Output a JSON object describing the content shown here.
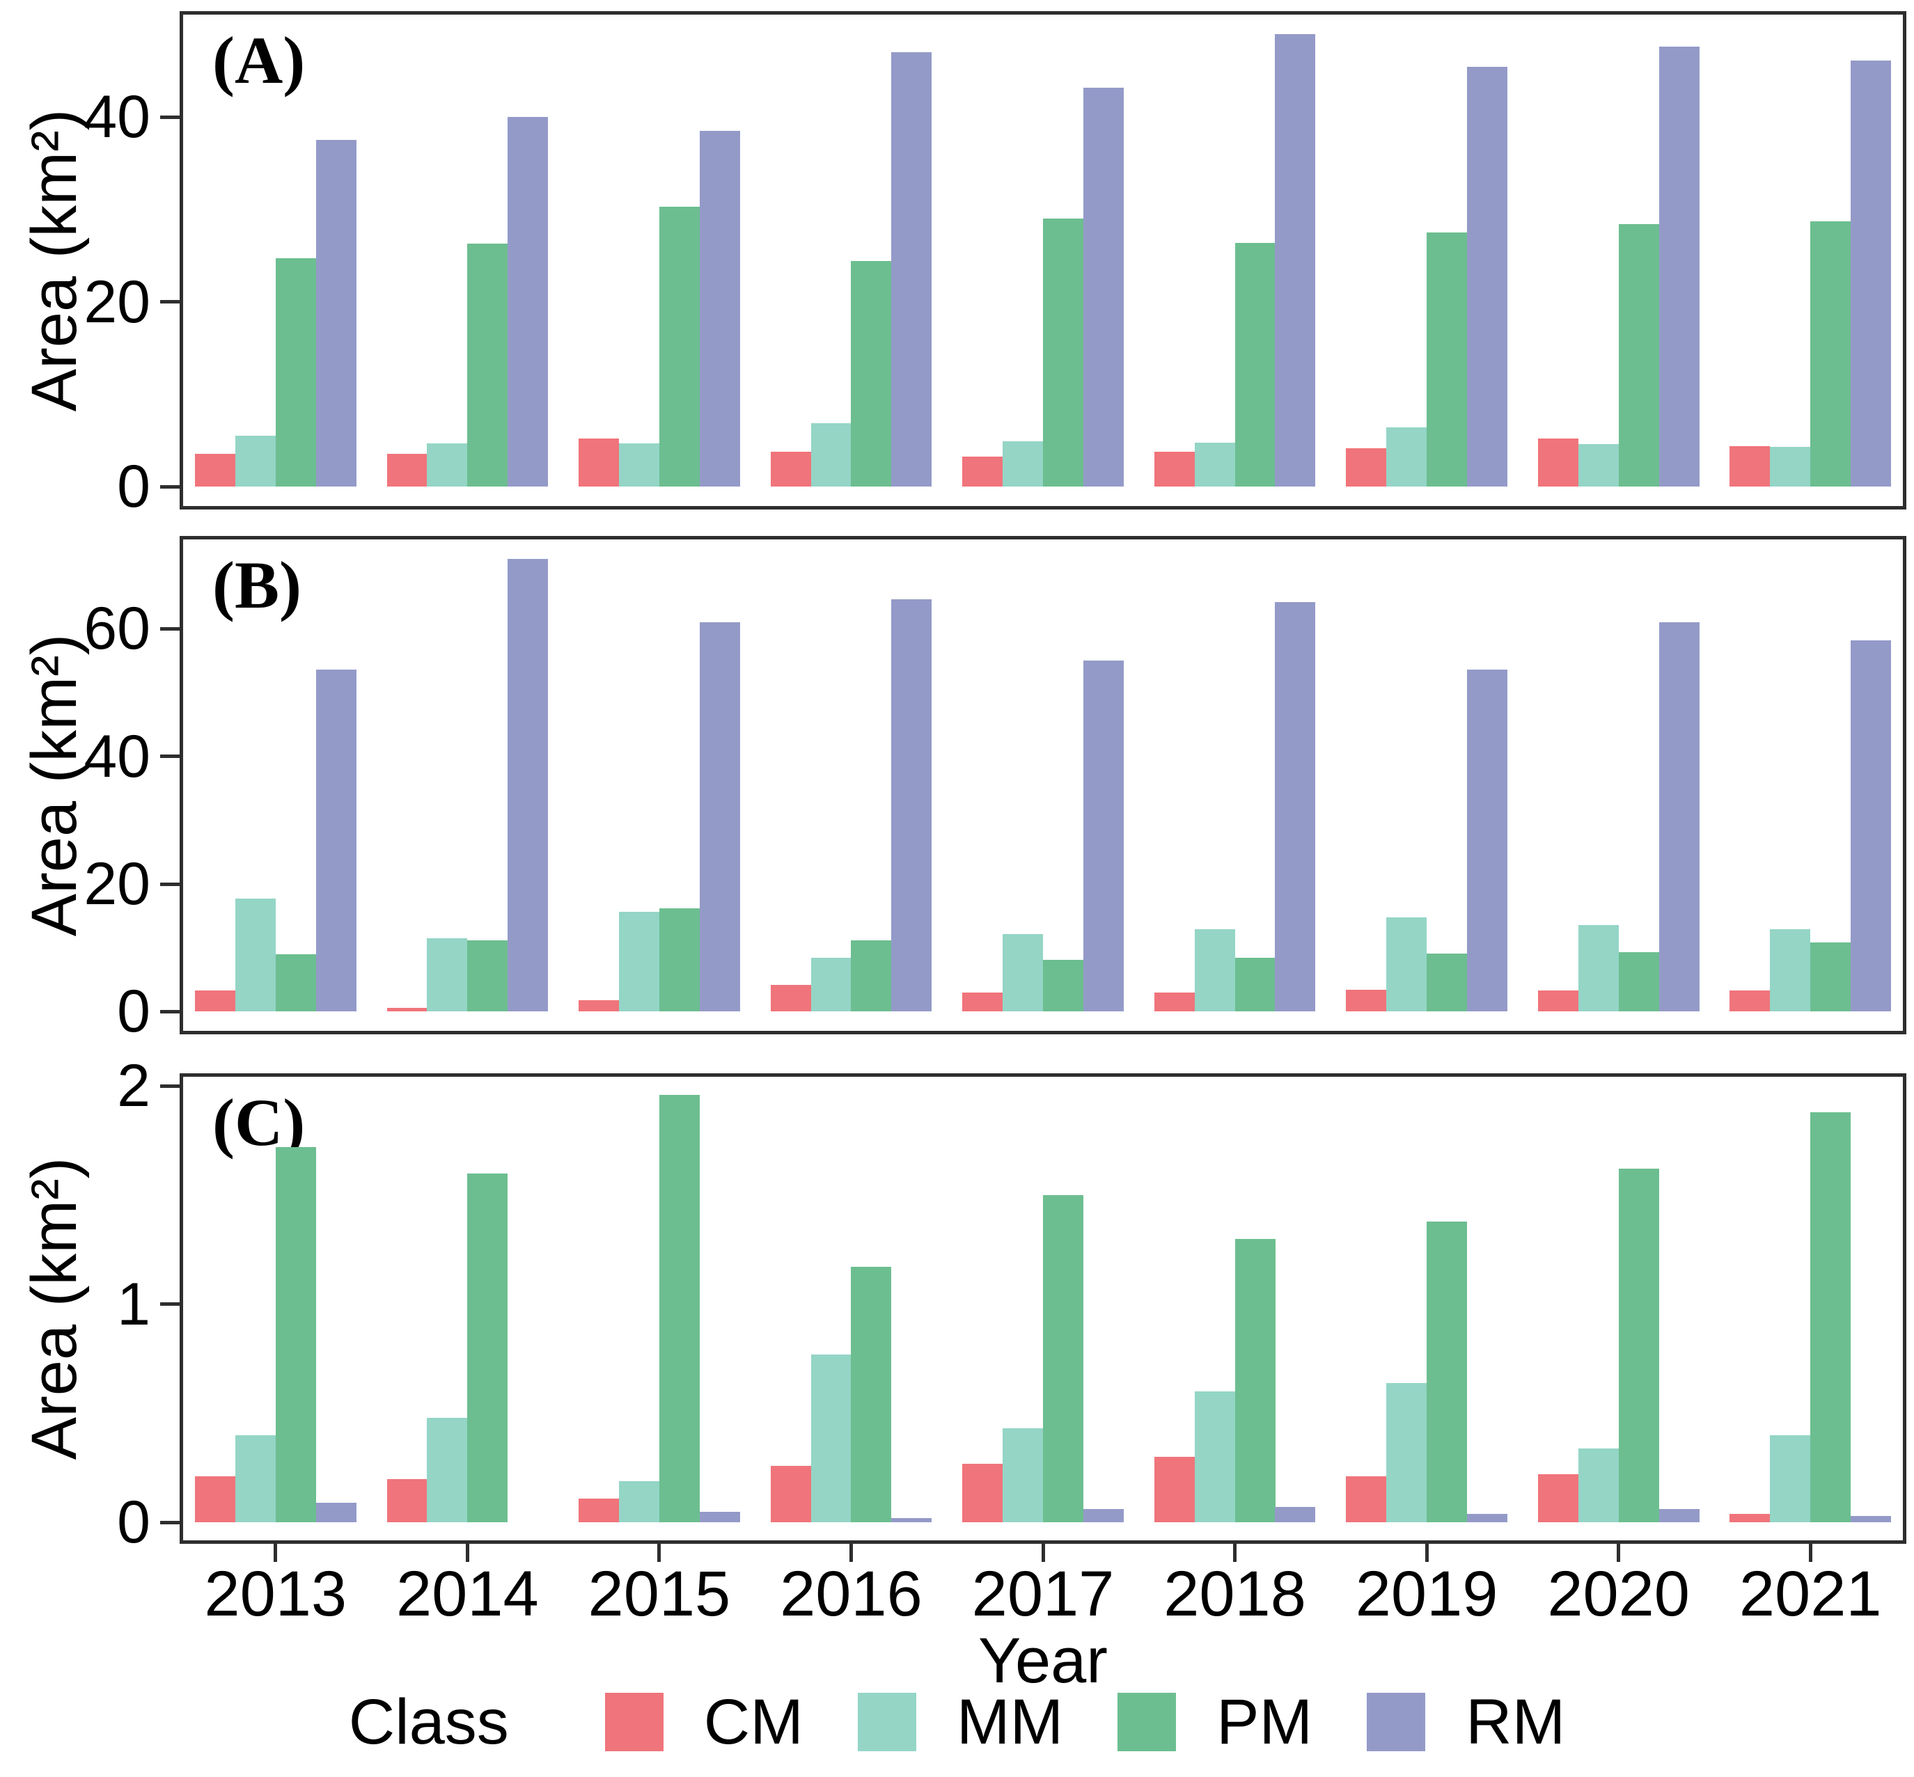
{
  "figure": {
    "xlabel": "Year",
    "legend_title": "Class",
    "background_color": "#FFFFFF",
    "frame_color": "#2E2E2E",
    "text_color": "#000000"
  },
  "chart_data": [
    {
      "type": "bar",
      "panel_label": "(A)",
      "ylabel": "Area (km²)",
      "xlabel": "Year",
      "categories": [
        "2013",
        "2014",
        "2015",
        "2016",
        "2017",
        "2018",
        "2019",
        "2020",
        "2021"
      ],
      "yticks": [
        0,
        20,
        40
      ],
      "ylim": [
        0,
        51.5
      ],
      "ymax_data": 49,
      "grid": false,
      "legend_position": "bottom",
      "series": [
        {
          "name": "CM",
          "color": "#F0747B",
          "values": [
            3.6,
            3.6,
            5.2,
            3.8,
            3.3,
            3.8,
            4.2,
            5.2,
            4.4
          ]
        },
        {
          "name": "MM",
          "color": "#94D5C6",
          "values": [
            5.5,
            4.7,
            4.7,
            6.9,
            4.9,
            4.8,
            6.4,
            4.6,
            4.3
          ]
        },
        {
          "name": "PM",
          "color": "#6CBE90",
          "values": [
            24.7,
            26.3,
            30.3,
            24.4,
            29.0,
            26.4,
            27.5,
            28.4,
            28.7
          ]
        },
        {
          "name": "RM",
          "color": "#949AC8",
          "values": [
            37.5,
            40.0,
            38.5,
            47.0,
            43.2,
            49.0,
            45.4,
            47.6,
            46.1
          ]
        }
      ]
    },
    {
      "type": "bar",
      "panel_label": "(B)",
      "ylabel": "Area (km²)",
      "xlabel": "Year",
      "categories": [
        "2013",
        "2014",
        "2015",
        "2016",
        "2017",
        "2018",
        "2019",
        "2020",
        "2021"
      ],
      "yticks": [
        0,
        20,
        40,
        60
      ],
      "ylim": [
        0,
        74.5
      ],
      "ymax_data": 71,
      "grid": false,
      "legend_position": "bottom",
      "series": [
        {
          "name": "CM",
          "color": "#F0747B",
          "values": [
            3.3,
            0.6,
            1.8,
            4.2,
            3.0,
            3.0,
            3.4,
            3.3,
            3.3
          ]
        },
        {
          "name": "MM",
          "color": "#94D5C6",
          "values": [
            17.7,
            11.5,
            15.6,
            8.4,
            12.2,
            12.9,
            14.8,
            13.6,
            12.9
          ]
        },
        {
          "name": "PM",
          "color": "#6CBE90",
          "values": [
            9.0,
            11.2,
            16.2,
            11.2,
            8.1,
            8.4,
            9.1,
            9.3,
            10.9
          ]
        },
        {
          "name": "RM",
          "color": "#949AC8",
          "values": [
            53.6,
            71.0,
            61.0,
            64.6,
            55.0,
            64.2,
            53.6,
            61.0,
            58.2
          ]
        }
      ]
    },
    {
      "type": "bar",
      "panel_label": "(C)",
      "ylabel": "Area (km²)",
      "xlabel": "Year",
      "categories": [
        "2013",
        "2014",
        "2015",
        "2016",
        "2017",
        "2018",
        "2019",
        "2020",
        "2021"
      ],
      "yticks": [
        0,
        1,
        2
      ],
      "ylim": [
        0,
        2.06
      ],
      "ymax_data": 1.96,
      "grid": false,
      "legend_position": "bottom",
      "series": [
        {
          "name": "CM",
          "color": "#F0747B",
          "values": [
            0.21,
            0.2,
            0.11,
            0.26,
            0.27,
            0.3,
            0.21,
            0.22,
            0.04
          ]
        },
        {
          "name": "MM",
          "color": "#94D5C6",
          "values": [
            0.4,
            0.48,
            0.19,
            0.77,
            0.43,
            0.6,
            0.64,
            0.34,
            0.4
          ]
        },
        {
          "name": "PM",
          "color": "#6CBE90",
          "values": [
            1.72,
            1.6,
            1.96,
            1.17,
            1.5,
            1.3,
            1.38,
            1.62,
            1.88
          ]
        },
        {
          "name": "RM",
          "color": "#949AC8",
          "values": [
            0.09,
            0.0,
            0.05,
            0.02,
            0.06,
            0.07,
            0.04,
            0.06,
            0.03
          ]
        }
      ]
    }
  ]
}
